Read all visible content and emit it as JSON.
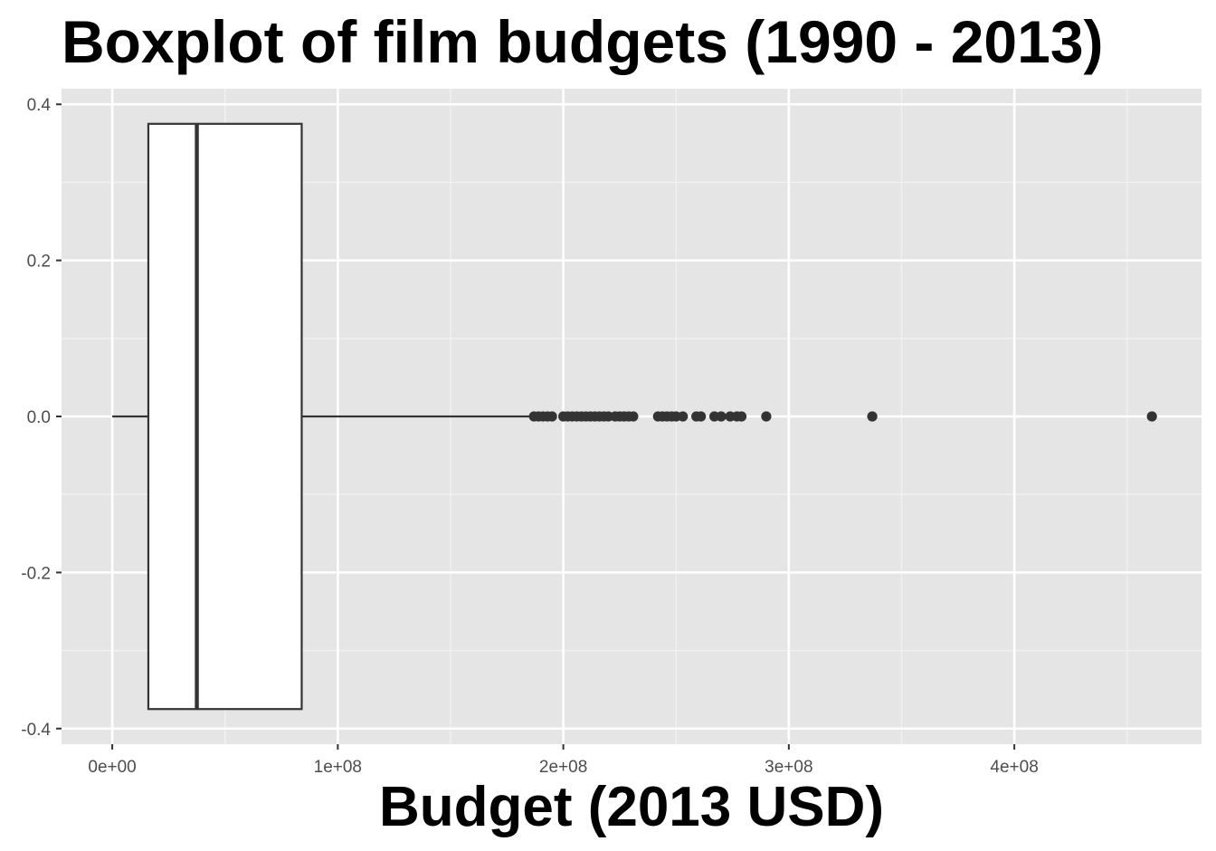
{
  "chart_data": {
    "type": "boxplot",
    "title": "Boxplot of film budgets (1990 - 2013)",
    "xlabel": "Budget (2013 USD)",
    "ylabel": "",
    "xlim": [
      -22500000,
      483000000
    ],
    "ylim": [
      -0.42,
      0.42
    ],
    "x_ticks": [
      {
        "value": 0,
        "label": "0e+00"
      },
      {
        "value": 100000000,
        "label": "1e+08"
      },
      {
        "value": 200000000,
        "label": "2e+08"
      },
      {
        "value": 300000000,
        "label": "3e+08"
      },
      {
        "value": 400000000,
        "label": "4e+08"
      }
    ],
    "x_minor_ticks": [
      50000000,
      150000000,
      250000000,
      350000000,
      450000000
    ],
    "y_ticks": [
      {
        "value": 0.4,
        "label": "0.4"
      },
      {
        "value": 0.2,
        "label": "0.2"
      },
      {
        "value": 0.0,
        "label": "0.0"
      },
      {
        "value": -0.2,
        "label": "-0.2"
      },
      {
        "value": -0.4,
        "label": "-0.4"
      }
    ],
    "y_minor_ticks": [
      0.3,
      0.1,
      -0.1,
      -0.3
    ],
    "box": {
      "whisker_low": 0,
      "q1": 16000000,
      "median": 37500000,
      "q3": 84000000,
      "whisker_high": 185000000,
      "y_center": 0,
      "half_height": 0.375
    },
    "outliers": [
      187000000,
      189000000,
      191000000,
      193000000,
      195000000,
      200000000,
      202000000,
      204000000,
      206000000,
      208000000,
      210000000,
      212000000,
      214000000,
      216000000,
      218000000,
      220000000,
      223000000,
      225000000,
      227000000,
      229000000,
      231000000,
      242000000,
      244000000,
      246000000,
      248000000,
      250000000,
      253000000,
      259000000,
      261000000,
      267000000,
      270000000,
      274000000,
      277000000,
      279000000,
      290000000,
      337000000,
      461000000
    ],
    "colors": {
      "panel_background": "#e5e5e5",
      "grid_major": "#ffffff",
      "grid_minor": "#f2f2f2",
      "box_fill": "#ffffff",
      "box_stroke": "#333333",
      "tick_text": "#4d4d4d",
      "tick_mark": "#333333"
    },
    "grid": true,
    "legend": "none"
  }
}
